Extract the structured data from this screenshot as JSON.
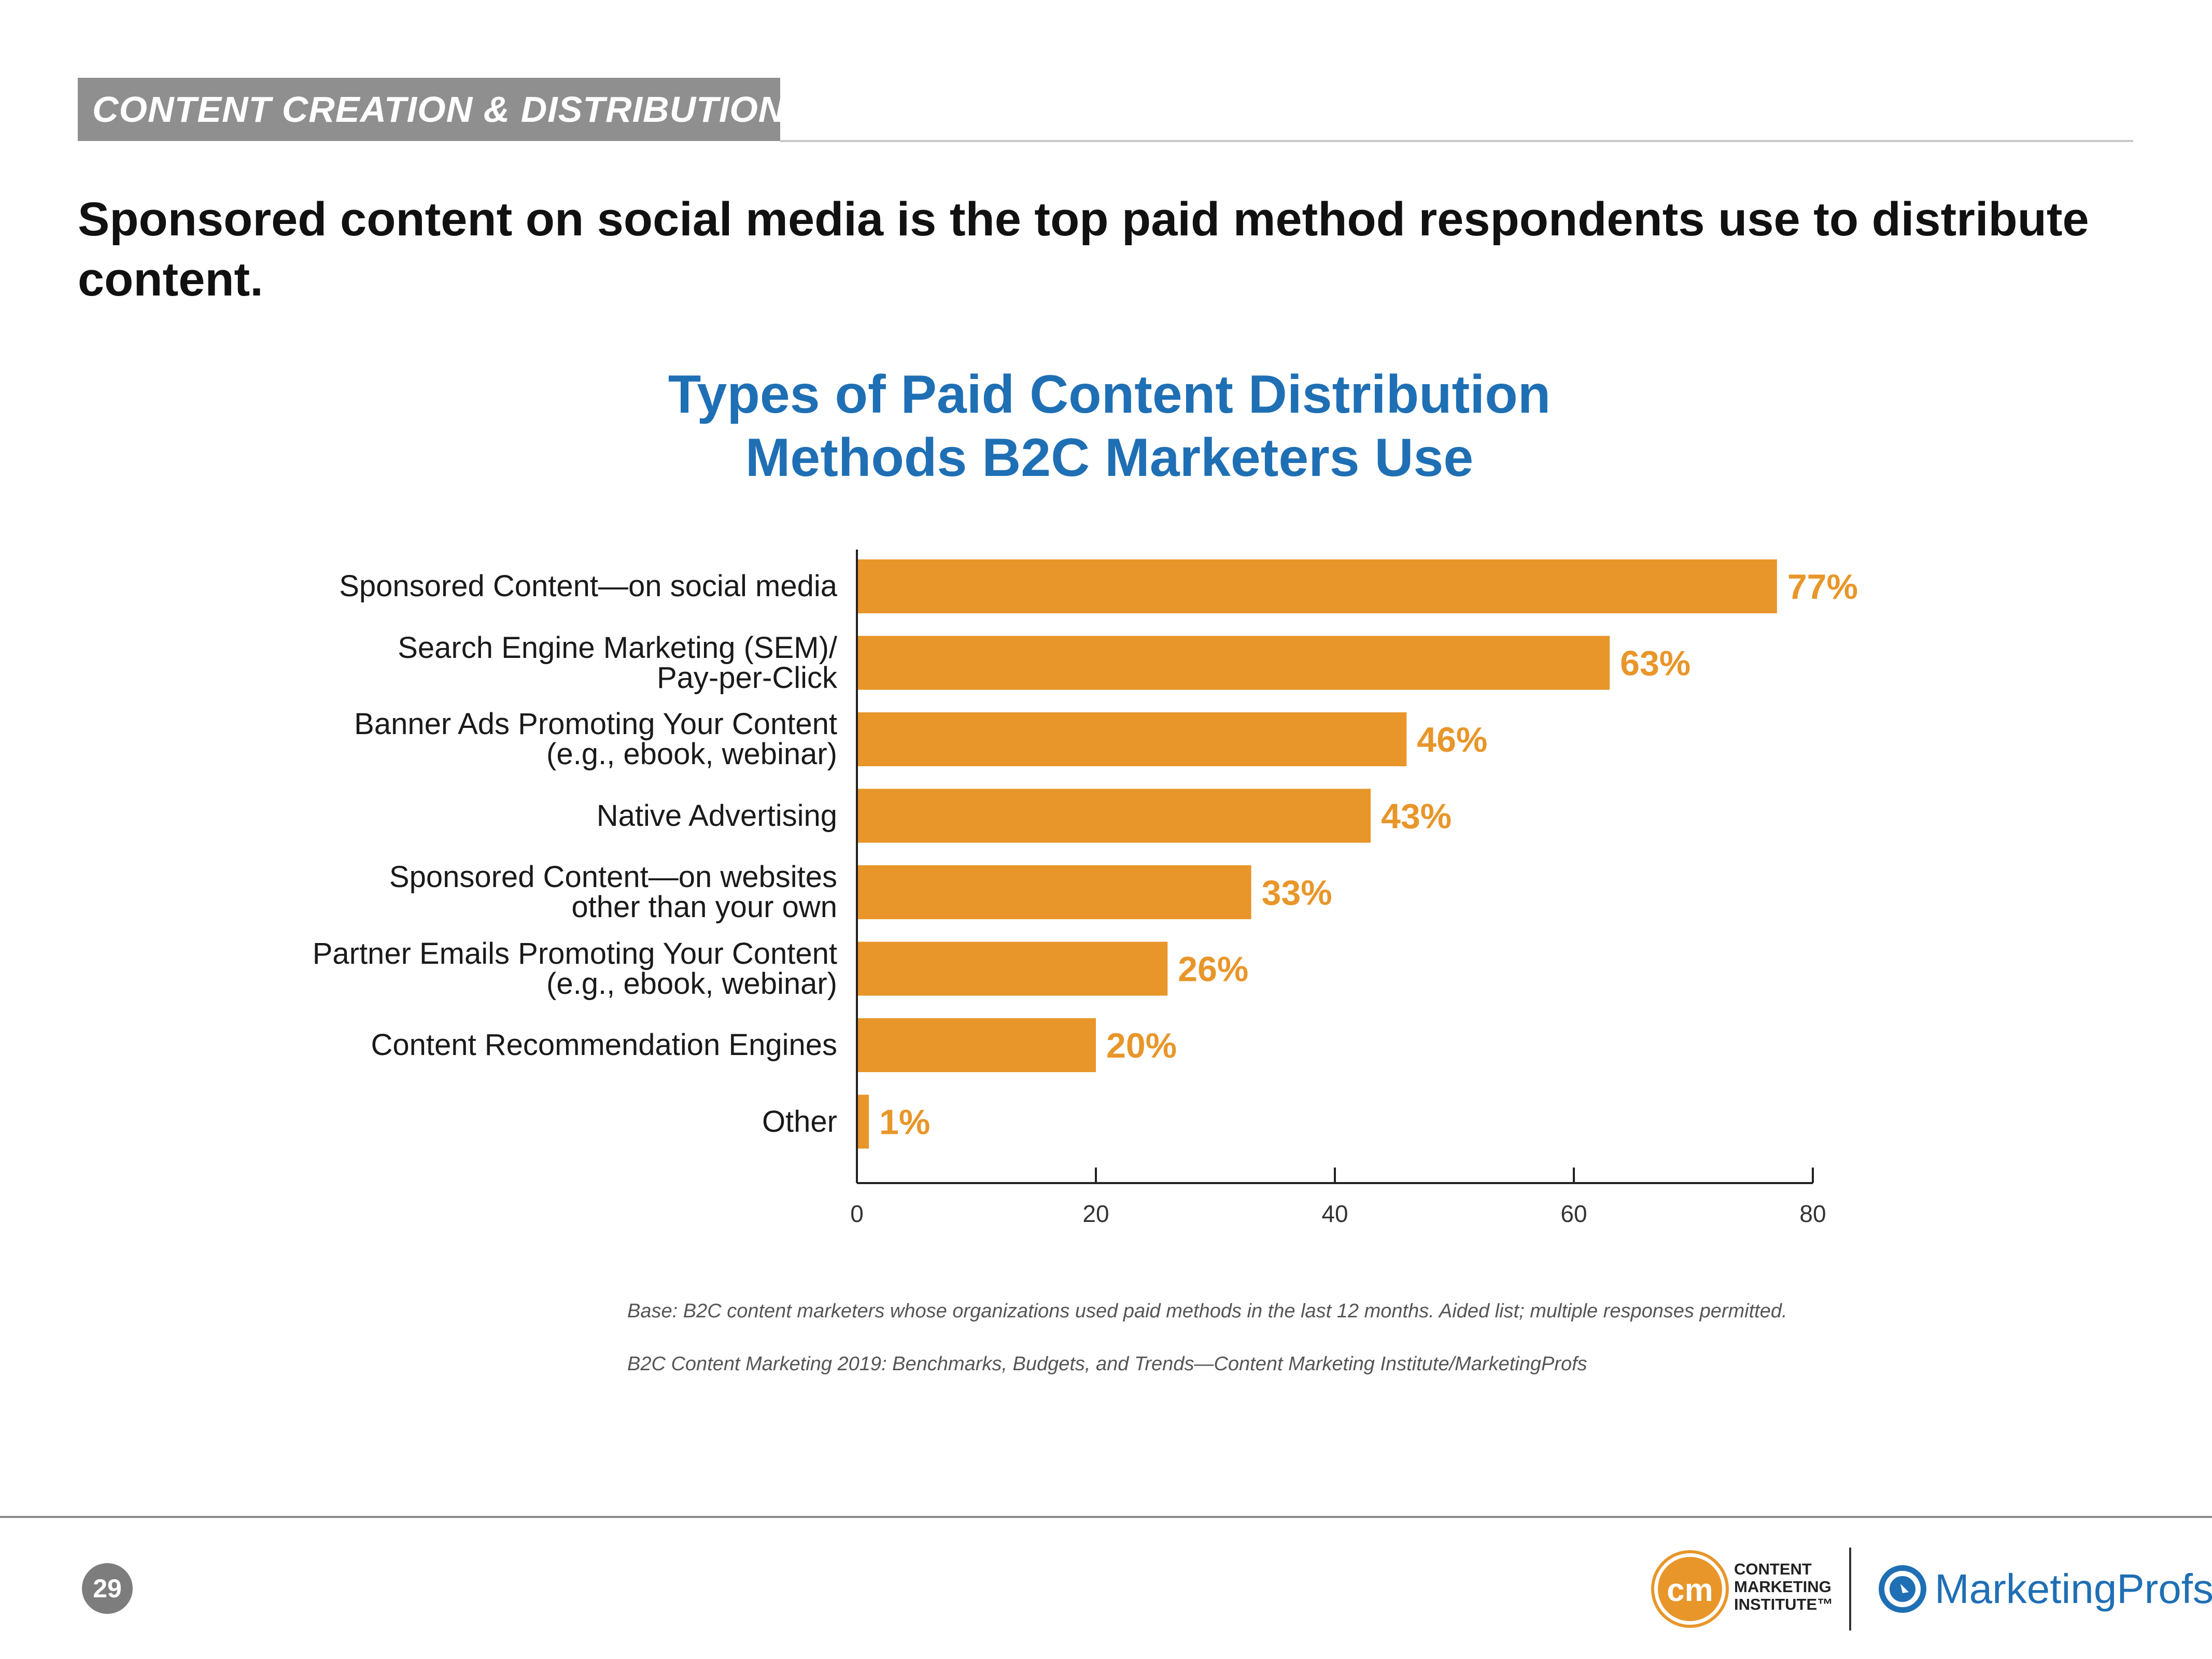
{
  "section_tag": "CONTENT CREATION & DISTRIBUTION",
  "headline": "Sponsored content on social media is the top paid method respondents use to distribute content.",
  "chart_data": {
    "type": "bar",
    "orientation": "horizontal",
    "title": "Types of Paid Content Distribution Methods B2C Marketers Use",
    "categories": [
      "Sponsored Content—on social media",
      "Search Engine Marketing (SEM)/\nPay-per-Click",
      "Banner Ads Promoting Your Content\n(e.g., ebook, webinar)",
      "Native Advertising",
      "Sponsored Content—on websites\nother than your own",
      "Partner Emails Promoting Your Content\n(e.g., ebook, webinar)",
      "Content Recommendation Engines",
      "Other"
    ],
    "values": [
      77,
      63,
      46,
      43,
      33,
      26,
      20,
      1
    ],
    "value_labels": [
      "77%",
      "63%",
      "46%",
      "43%",
      "33%",
      "26%",
      "20%",
      "1%"
    ],
    "xlim": [
      0,
      80
    ],
    "xticks": [
      "0",
      "20",
      "40",
      "60",
      "80"
    ],
    "xlabel": "",
    "ylabel": "",
    "bar_color": "#e8962a"
  },
  "notes": {
    "base": "Base: B2C content marketers whose organizations used paid methods in the last 12 months. Aided list; multiple responses permitted.",
    "source": "B2C Content Marketing 2019: Benchmarks, Budgets, and Trends—Content Marketing Institute/MarketingProfs"
  },
  "footer": {
    "page_number": "29",
    "cmi_mark": "cm",
    "cmi_text": "CONTENT\nMARKETING\nINSTITUTE™",
    "mp_text": "MarketingProfs"
  }
}
